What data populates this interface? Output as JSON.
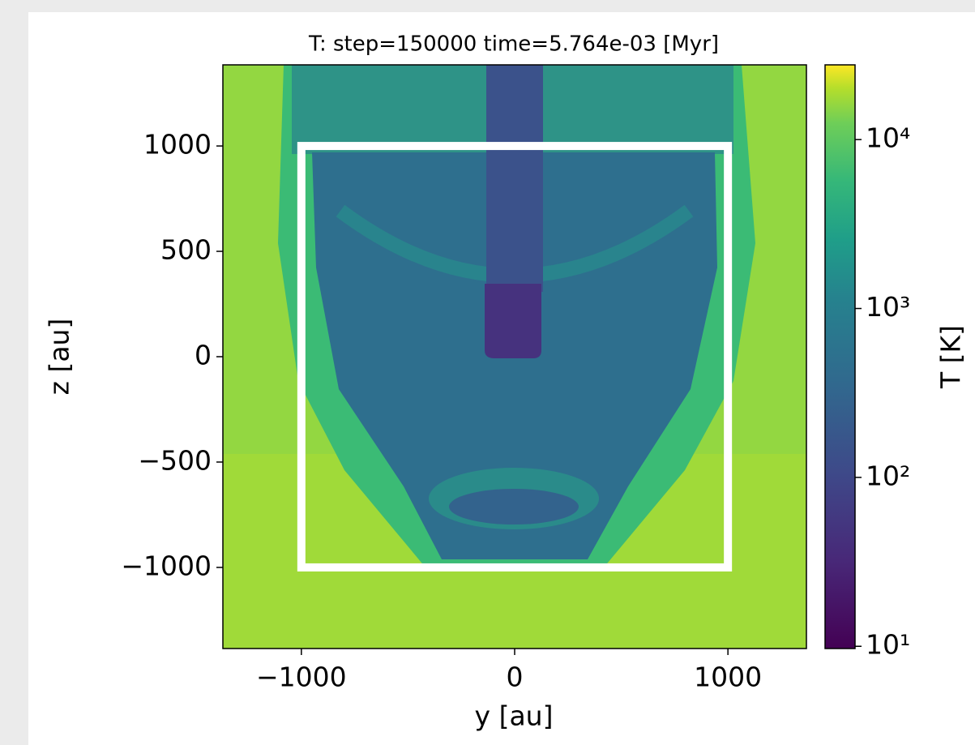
{
  "chart_data": {
    "type": "heatmap",
    "title": "T: step=150000 time=5.764e-03 [Myr]",
    "x_label": "y [au]",
    "y_label": "z [au]",
    "xlim": [
      -1368,
      1368
    ],
    "ylim": [
      -1385,
      1385
    ],
    "xticks": [
      {
        "value": -1000,
        "label": "−1000"
      },
      0,
      1000
    ],
    "yticks": [
      {
        "value": -1000,
        "label": "−1000"
      },
      {
        "value": -500,
        "label": "−500"
      },
      0,
      500,
      1000
    ],
    "colorbar": {
      "label": "T [K]",
      "scale": "log",
      "colormap": "viridis",
      "lim": [
        9.7,
        27700
      ],
      "ticks": [
        {
          "value": 10,
          "label": "10¹"
        },
        {
          "value": 100,
          "label": "10²"
        },
        {
          "value": 1000,
          "label": "10³"
        },
        {
          "value": 10000,
          "label": "10⁴"
        }
      ]
    },
    "highlight_box": {
      "x": [
        -1000,
        1000
      ],
      "y": [
        -1000,
        1000
      ],
      "color": "#ffffff"
    }
  }
}
